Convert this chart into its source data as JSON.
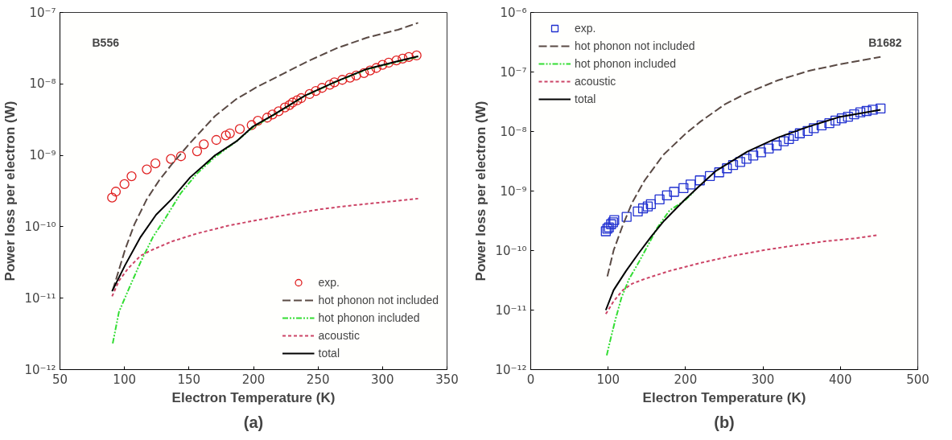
{
  "chart_data": [
    {
      "type": "line",
      "xlabel": "Electron Temperature (K)",
      "ylabel": "Power loss per electron (W)",
      "log": "y",
      "grid": false,
      "legend": "bottom right",
      "xlim": [
        50,
        350
      ],
      "xticks": [
        50,
        100,
        150,
        200,
        250,
        300,
        350
      ],
      "ylim": [
        1e-12,
        1e-07
      ],
      "yticks": [
        {
          "value": 1e-12,
          "label": "10⁻¹²"
        },
        {
          "value": 1e-11,
          "label": "10⁻¹¹"
        },
        {
          "value": 1e-10,
          "label": "10⁻¹⁰"
        },
        {
          "value": 1e-09,
          "label": "10⁻⁹"
        },
        {
          "value": 1e-08,
          "label": "10⁻⁸"
        },
        {
          "value": 1e-07,
          "label": "10⁻⁷"
        }
      ],
      "annotations": [
        "B556",
        "(a)"
      ],
      "series": [
        {
          "name": "exp.",
          "type": "scatter",
          "marker": "circle",
          "color": "#e02020",
          "x": [
            90.4,
            93.3,
            100,
            105.5,
            117.3,
            124,
            136,
            143.8,
            156.3,
            161.5,
            171.2,
            178.6,
            181.7,
            189.4,
            198.6,
            203.4,
            210.6,
            214.7,
            219.5,
            224.3,
            227.9,
            230.3,
            233.9,
            237,
            243.5,
            248.3,
            253.1,
            259.1,
            262.7,
            268.8,
            274.8,
            279.6,
            285.6,
            290.4,
            295.2,
            300,
            304.8,
            310.8,
            315.6,
            320.4,
            326.4
          ],
          "values": [
            2.56e-10,
            3.1e-10,
            3.95e-10,
            5.1e-10,
            6.35e-10,
            7.7e-10,
            8.9e-10,
            9.7e-10,
            1.14e-09,
            1.43e-09,
            1.64e-09,
            1.9e-09,
            2.03e-09,
            2.34e-09,
            2.65e-09,
            3.05e-09,
            3.37e-09,
            3.73e-09,
            4.13e-09,
            4.67e-09,
            5.06e-09,
            5.48e-09,
            5.89e-09,
            6.32e-09,
            7.2e-09,
            7.97e-09,
            8.8e-09,
            9.75e-09,
            1.05e-08,
            1.14e-08,
            1.22e-08,
            1.31e-08,
            1.42e-08,
            1.54e-08,
            1.67e-08,
            1.85e-08,
            1.98e-08,
            2.13e-08,
            2.26e-08,
            2.38e-08,
            2.5e-08
          ]
        },
        {
          "name": "hot phonon not included",
          "line_style": "dashed",
          "color": "#5a4a44",
          "x": [
            90.9,
            100.5,
            107.7,
            117.3,
            126.9,
            136.5,
            151,
            170.2,
            187,
            203.8,
            223.1,
            242.3,
            263.9,
            288,
            312,
            327.6
          ],
          "values": [
            1.29e-11,
            4.8e-11,
            1.08e-10,
            2.43e-10,
            4.46e-10,
            7.4e-10,
            1.5e-09,
            3.55e-09,
            6.19e-09,
            9.3e-09,
            1.39e-08,
            2.08e-08,
            3.13e-08,
            4.45e-08,
            5.73e-08,
            7.16e-08
          ]
        },
        {
          "name": "hot phonon included",
          "line_style": "dashdot",
          "color": "#33dd33",
          "x": [
            90.9,
            95.7,
            102.9,
            112.5,
            122.1,
            131.7,
            143.8,
            155.8,
            170.2,
            187,
            199,
            215.9,
            239.9,
            263.9,
            288,
            312,
            327.6
          ],
          "values": [
            2.32e-12,
            6.4e-12,
            1.29e-11,
            3.2e-11,
            7.2e-11,
            1.32e-10,
            2.98e-10,
            5.46e-10,
            9.5e-10,
            1.58e-09,
            2.42e-09,
            3.7e-09,
            6.8e-09,
            1.07e-08,
            1.6e-08,
            2.05e-08,
            2.4e-08
          ]
        },
        {
          "name": "acoustic",
          "line_style": "dotted",
          "color": "#cc4466",
          "x": [
            90.4,
            95.7,
            102.9,
            112.5,
            122.1,
            136.5,
            155.8,
            179.8,
            203.8,
            227.9,
            251.9,
            276,
            300,
            327.6
          ],
          "values": [
            1.06e-11,
            1.75e-11,
            2.62e-11,
            3.94e-11,
            4.8e-11,
            6.2e-11,
            8e-11,
            1.03e-10,
            1.25e-10,
            1.49e-10,
            1.76e-10,
            1.99e-10,
            2.2e-10,
            2.48e-10
          ]
        },
        {
          "name": "total",
          "line_style": "solid",
          "color": "#000000",
          "x": [
            90.4,
            100.5,
            112.5,
            124.5,
            136.5,
            151,
            170.2,
            187,
            199,
            215.9,
            239.9,
            263.9,
            288,
            312,
            327.6
          ],
          "values": [
            1.25e-11,
            2.9e-11,
            7.2e-11,
            1.47e-10,
            2.43e-10,
            4.93e-10,
            1e-09,
            1.58e-09,
            2.49e-09,
            3.73e-09,
            6.85e-09,
            1.08e-08,
            1.62e-08,
            2.08e-08,
            2.43e-08
          ]
        }
      ]
    },
    {
      "type": "line",
      "xlabel": "Electron Temperature (K)",
      "ylabel": "Power loss per electron (W)",
      "log": "y",
      "grid": false,
      "legend": "top left",
      "xlim": [
        0,
        500
      ],
      "xticks": [
        0,
        100,
        200,
        300,
        400,
        500
      ],
      "ylim": [
        1e-12,
        1e-06
      ],
      "yticks": [
        {
          "value": 1e-12,
          "label": "10⁻¹²"
        },
        {
          "value": 1e-11,
          "label": "10⁻¹¹"
        },
        {
          "value": 1e-10,
          "label": "10⁻¹⁰"
        },
        {
          "value": 1e-09,
          "label": "10⁻⁹"
        },
        {
          "value": 1e-08,
          "label": "10⁻⁸"
        },
        {
          "value": 1e-07,
          "label": "10⁻⁷"
        },
        {
          "value": 1e-06,
          "label": "10⁻⁶"
        }
      ],
      "annotations": [
        "B1682",
        "(b)"
      ],
      "series": [
        {
          "name": "exp.",
          "type": "scatter",
          "marker": "square",
          "color": "#2030d0",
          "x": [
            97,
            99,
            101,
            103.8,
            106.3,
            107.9,
            123.9,
            138.3,
            145.1,
            151.2,
            155.2,
            166.4,
            176,
            185.2,
            197.3,
            206.5,
            218.5,
            231.4,
            243.4,
            253.4,
            261.4,
            270.6,
            278.7,
            287.5,
            297.5,
            307.5,
            317.6,
            326.8,
            333.6,
            339.6,
            347.6,
            357.7,
            365.7,
            375.7,
            385.7,
            393.7,
            401.8,
            409.8,
            417.8,
            425.8,
            433.8,
            441.9,
            451.9
          ],
          "values": [
            2.11e-10,
            2.33e-10,
            2.45e-10,
            2.77e-10,
            2.98e-10,
            3.25e-10,
            3.67e-10,
            4.53e-10,
            5.12e-10,
            5.51e-10,
            6.01e-10,
            7.23e-10,
            8.48e-10,
            9.7e-10,
            1.12e-09,
            1.29e-09,
            1.51e-09,
            1.79e-09,
            2.06e-09,
            2.41e-09,
            2.73e-09,
            3.08e-09,
            3.49e-09,
            3.95e-09,
            4.46e-09,
            5.17e-09,
            5.85e-09,
            6.87e-09,
            7.48e-09,
            8.45e-09,
            9.33e-09,
            1.02e-08,
            1.14e-08,
            1.27e-08,
            1.38e-08,
            1.53e-08,
            1.66e-08,
            1.77e-08,
            1.95e-08,
            2.1e-08,
            2.21e-08,
            2.32e-08,
            2.44e-08
          ]
        },
        {
          "name": "hot phonon not included",
          "line_style": "dashed",
          "color": "#5a4a44",
          "x": [
            99,
            107.1,
            119.1,
            131.1,
            147.2,
            171.2,
            199.3,
            219.3,
            251.4,
            279.5,
            319.6,
            359.7,
            399.8,
            451.9
          ],
          "values": [
            3.68e-11,
            1.01e-10,
            2.7e-10,
            6.4e-10,
            1.51e-09,
            4.04e-09,
            9e-09,
            1.47e-08,
            2.9e-08,
            4.45e-08,
            7.28e-08,
            1.05e-07,
            1.35e-07,
            1.79e-07
          ]
        },
        {
          "name": "hot phonon included",
          "line_style": "dashdot",
          "color": "#33dd33",
          "x": [
            98.2,
            103,
            109.1,
            117.1,
            127.1,
            139.1,
            151.2,
            163.2,
            179.2,
            199.3,
            210
          ],
          "values": [
            1.74e-12,
            3.2e-12,
            6.7e-12,
            1.6e-11,
            3.34e-11,
            6.2e-11,
            1.21e-10,
            2.39e-10,
            4.7e-10,
            7e-10,
            9.5e-10
          ]
        },
        {
          "name": "acoustic",
          "line_style": "dotted",
          "color": "#cc4466",
          "x": [
            97,
            107.1,
            119.1,
            131.1,
            147.2,
            179.2,
            219.3,
            259.4,
            299.5,
            339.6,
            379.7,
            419.8,
            447.9
          ],
          "values": [
            8.6e-12,
            1.41e-11,
            2.17e-11,
            2.78e-11,
            3.34e-11,
            4.54e-11,
            6.2e-11,
            8.1e-11,
            1.01e-10,
            1.21e-10,
            1.43e-10,
            1.61e-10,
            1.82e-10
          ]
        },
        {
          "name": "total",
          "line_style": "solid",
          "color": "#000000",
          "x": [
            97,
            107.1,
            123.1,
            139.1,
            155.2,
            171.2,
            187.3,
            199.3,
            219.3,
            239.4,
            279.5,
            319.6,
            359.7,
            399.8,
            451.9
          ],
          "values": [
            1e-11,
            2.17e-11,
            4.54e-11,
            8.9e-11,
            1.69e-10,
            3.05e-10,
            5e-10,
            7.2e-10,
            1.26e-09,
            2.19e-09,
            4.57e-09,
            7.96e-09,
            1.22e-08,
            1.77e-08,
            2.32e-08
          ]
        }
      ]
    }
  ]
}
